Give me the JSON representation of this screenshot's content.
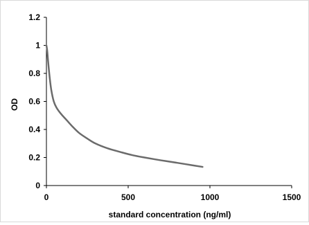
{
  "chart_data": {
    "type": "line",
    "title": "",
    "xlabel": "standard concentration (ng/ml)",
    "ylabel": "OD",
    "xlim": [
      0,
      1500
    ],
    "ylim": [
      0,
      1.2
    ],
    "x_ticks": [
      0,
      500,
      1000,
      1500
    ],
    "y_ticks": [
      0,
      0.2,
      0.4,
      0.6,
      0.8,
      1,
      1.2
    ],
    "x_tick_labels": [
      "0",
      "500",
      "1000",
      "1500"
    ],
    "y_tick_labels": [
      "0",
      "0.2",
      "0.4",
      "0.6",
      "0.8",
      "1",
      "1.2"
    ],
    "grid": false,
    "legend": "none",
    "line_color": "#6b6b6b",
    "axis_color": "#000000",
    "series": [
      {
        "x": [
          0,
          5,
          10,
          20,
          30,
          45,
          62,
          90,
          125,
          160,
          200,
          250,
          300,
          375,
          450,
          525,
          600,
          700,
          800,
          880,
          955
        ],
        "values": [
          1.0,
          0.96,
          0.89,
          0.77,
          0.68,
          0.6,
          0.555,
          0.51,
          0.465,
          0.42,
          0.375,
          0.335,
          0.3,
          0.265,
          0.24,
          0.217,
          0.2,
          0.18,
          0.162,
          0.147,
          0.133
        ]
      }
    ]
  }
}
